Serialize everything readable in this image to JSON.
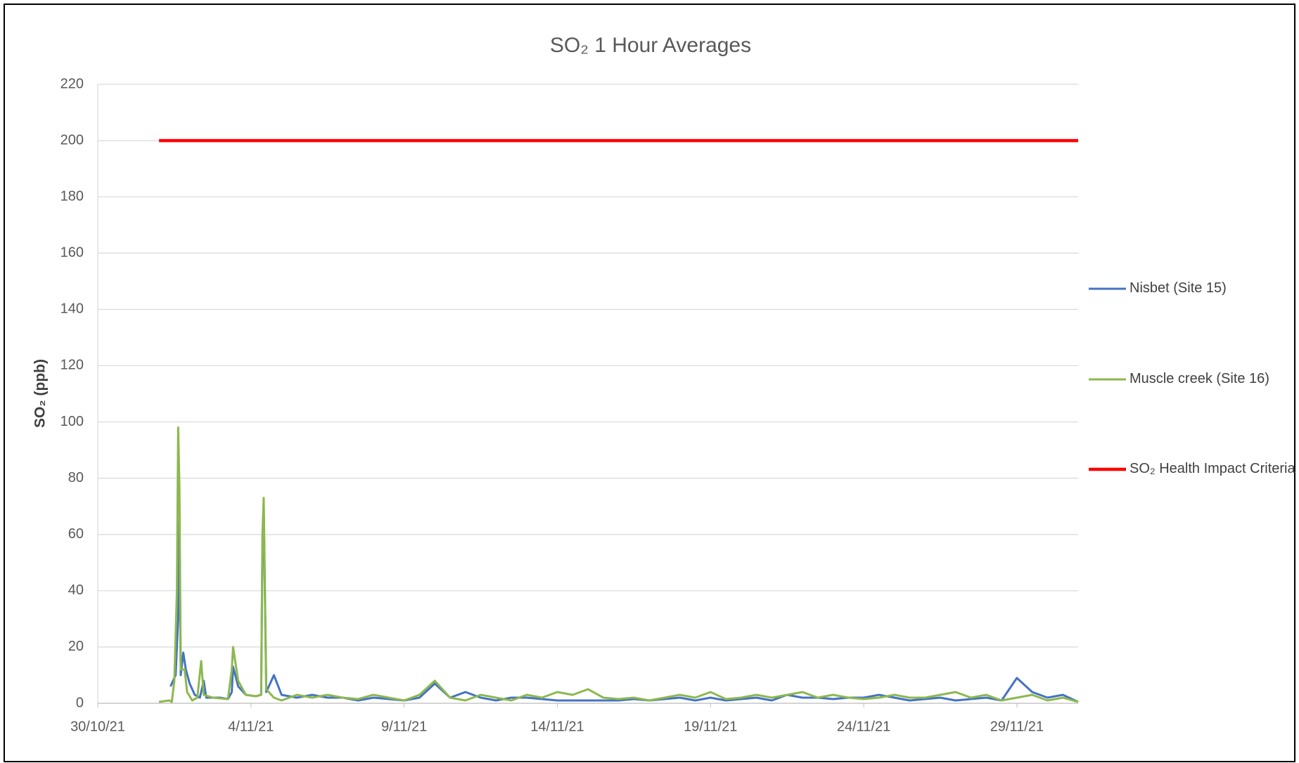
{
  "chart_data": {
    "type": "line",
    "title": "SO₂ 1 Hour Averages",
    "y_label": "SO₂ (ppb)",
    "xlim": [
      "2021-10-30",
      "2021-12-01"
    ],
    "xticks": [
      {
        "value": "2021-10-30",
        "label": "30/10/21"
      },
      {
        "value": "2021-11-04",
        "label": "4/11/21"
      },
      {
        "value": "2021-11-09",
        "label": "9/11/21"
      },
      {
        "value": "2021-11-14",
        "label": "14/11/21"
      },
      {
        "value": "2021-11-19",
        "label": "19/11/21"
      },
      {
        "value": "2021-11-24",
        "label": "24/11/21"
      },
      {
        "value": "2021-11-29",
        "label": "29/11/21"
      }
    ],
    "ylim": [
      0,
      220
    ],
    "yticks": [
      0,
      20,
      40,
      60,
      80,
      100,
      120,
      140,
      160,
      180,
      200,
      220
    ],
    "grid": true,
    "legend": "right",
    "series": [
      {
        "name": "Nisbet (Site 15)",
        "color": "#4472c4",
        "x": [
          "2021-11-01T09:00",
          "2021-11-01T13:00",
          "2021-11-01T15:00",
          "2021-11-01T16:00",
          "2021-11-01T17:00",
          "2021-11-01T19:00",
          "2021-11-01T21:00",
          "2021-11-02T00:00",
          "2021-11-02T04:00",
          "2021-11-02T08:00",
          "2021-11-02T11:00",
          "2021-11-02T13:00",
          "2021-11-03T00:00",
          "2021-11-03T06:00",
          "2021-11-03T09:00",
          "2021-11-03T10:00",
          "2021-11-03T14:00",
          "2021-11-03T20:00",
          "2021-11-04T04:00",
          "2021-11-04T08:00",
          "2021-11-04T09:00",
          "2021-11-04T10:00",
          "2021-11-04T12:00",
          "2021-11-04T18:00",
          "2021-11-05T00:00",
          "2021-11-05T12:00",
          "2021-11-06T00:00",
          "2021-11-06T12:00",
          "2021-11-07T00:00",
          "2021-11-07T12:00",
          "2021-11-08T00:00",
          "2021-11-08T12:00",
          "2021-11-09T00:00",
          "2021-11-09T12:00",
          "2021-11-10T00:00",
          "2021-11-10T12:00",
          "2021-11-11T00:00",
          "2021-11-11T12:00",
          "2021-11-12T00:00",
          "2021-11-12T12:00",
          "2021-11-13T00:00",
          "2021-11-13T12:00",
          "2021-11-14T00:00",
          "2021-11-14T12:00",
          "2021-11-15T00:00",
          "2021-11-15T12:00",
          "2021-11-16T00:00",
          "2021-11-16T12:00",
          "2021-11-17T00:00",
          "2021-11-17T12:00",
          "2021-11-18T00:00",
          "2021-11-18T12:00",
          "2021-11-19T00:00",
          "2021-11-19T12:00",
          "2021-11-20T00:00",
          "2021-11-20T12:00",
          "2021-11-21T00:00",
          "2021-11-21T12:00",
          "2021-11-22T00:00",
          "2021-11-22T12:00",
          "2021-11-23T00:00",
          "2021-11-23T12:00",
          "2021-11-24T00:00",
          "2021-11-24T12:00",
          "2021-11-25T00:00",
          "2021-11-25T12:00",
          "2021-11-26T00:00",
          "2021-11-26T12:00",
          "2021-11-27T00:00",
          "2021-11-27T12:00",
          "2021-11-28T00:00",
          "2021-11-28T12:00",
          "2021-11-29T00:00",
          "2021-11-29T12:00",
          "2021-11-30T00:00",
          "2021-11-30T12:00",
          "2021-12-01T00:00"
        ],
        "values": [
          6,
          10,
          30,
          65,
          10,
          18,
          12,
          7,
          3,
          2,
          8,
          2,
          2,
          1.5,
          4,
          13,
          6,
          3,
          2.5,
          3,
          55,
          70,
          4,
          10,
          3,
          2,
          3,
          2,
          2,
          1,
          2,
          1.5,
          1,
          2,
          7,
          2,
          4,
          2,
          1,
          2,
          2,
          1.5,
          1,
          1,
          1,
          1,
          1,
          1.5,
          1,
          1.5,
          2,
          1,
          2,
          1,
          1.5,
          2,
          1,
          3,
          2,
          2,
          1.5,
          2,
          2,
          3,
          2,
          1,
          1.5,
          2,
          1,
          1.5,
          2,
          1,
          9,
          4,
          2,
          3,
          0.5
        ]
      },
      {
        "name": "Muscle creek (Site 16)",
        "color": "#8cb84e",
        "x": [
          "2021-11-01T00:00",
          "2021-11-01T08:00",
          "2021-11-01T10:00",
          "2021-11-01T12:00",
          "2021-11-01T14:00",
          "2021-11-01T15:00",
          "2021-11-01T16:00",
          "2021-11-01T17:00",
          "2021-11-01T20:00",
          "2021-11-01T22:00",
          "2021-11-02T02:00",
          "2021-11-02T06:00",
          "2021-11-02T09:00",
          "2021-11-02T11:00",
          "2021-11-02T18:00",
          "2021-11-03T06:00",
          "2021-11-03T09:00",
          "2021-11-03T10:00",
          "2021-11-03T14:00",
          "2021-11-03T20:00",
          "2021-11-04T04:00",
          "2021-11-04T08:00",
          "2021-11-04T09:00",
          "2021-11-04T10:00",
          "2021-11-04T12:00",
          "2021-11-04T18:00",
          "2021-11-05T00:00",
          "2021-11-05T12:00",
          "2021-11-06T00:00",
          "2021-11-06T12:00",
          "2021-11-07T00:00",
          "2021-11-07T12:00",
          "2021-11-08T00:00",
          "2021-11-08T12:00",
          "2021-11-09T00:00",
          "2021-11-09T12:00",
          "2021-11-10T00:00",
          "2021-11-10T12:00",
          "2021-11-11T00:00",
          "2021-11-11T12:00",
          "2021-11-12T00:00",
          "2021-11-12T12:00",
          "2021-11-13T00:00",
          "2021-11-13T12:00",
          "2021-11-14T00:00",
          "2021-11-14T12:00",
          "2021-11-15T00:00",
          "2021-11-15T12:00",
          "2021-11-16T00:00",
          "2021-11-16T12:00",
          "2021-11-17T00:00",
          "2021-11-17T12:00",
          "2021-11-18T00:00",
          "2021-11-18T12:00",
          "2021-11-19T00:00",
          "2021-11-19T12:00",
          "2021-11-20T00:00",
          "2021-11-20T12:00",
          "2021-11-21T00:00",
          "2021-11-21T12:00",
          "2021-11-22T00:00",
          "2021-11-22T12:00",
          "2021-11-23T00:00",
          "2021-11-23T12:00",
          "2021-11-24T00:00",
          "2021-11-24T12:00",
          "2021-11-25T00:00",
          "2021-11-25T12:00",
          "2021-11-26T00:00",
          "2021-11-26T12:00",
          "2021-11-27T00:00",
          "2021-11-27T12:00",
          "2021-11-28T00:00",
          "2021-11-28T12:00",
          "2021-11-29T00:00",
          "2021-11-29T12:00",
          "2021-11-30T00:00",
          "2021-11-30T12:00",
          "2021-12-01T00:00"
        ],
        "values": [
          0.5,
          1,
          0.5,
          8,
          40,
          98,
          76,
          12,
          12,
          4,
          1,
          2,
          15,
          3,
          2,
          1.5,
          12,
          20,
          8,
          3,
          2.5,
          3,
          60,
          73,
          5,
          2,
          1,
          3,
          2,
          3,
          2,
          1.5,
          3,
          2,
          1,
          3,
          8,
          2,
          1,
          3,
          2,
          1,
          3,
          2,
          4,
          3,
          5,
          2,
          1.5,
          2,
          1,
          2,
          3,
          2,
          4,
          1.5,
          2,
          3,
          2,
          3,
          4,
          2,
          3,
          2,
          1.5,
          2,
          3,
          2,
          2,
          3,
          4,
          2,
          3,
          1,
          2,
          3,
          1,
          2,
          0.5
        ]
      },
      {
        "name": "SO₂ Health Impact Criteria",
        "color": "#ff0000",
        "x": [
          "2021-11-01T00:00",
          "2021-12-01T00:00"
        ],
        "values": [
          200,
          200
        ]
      }
    ]
  }
}
